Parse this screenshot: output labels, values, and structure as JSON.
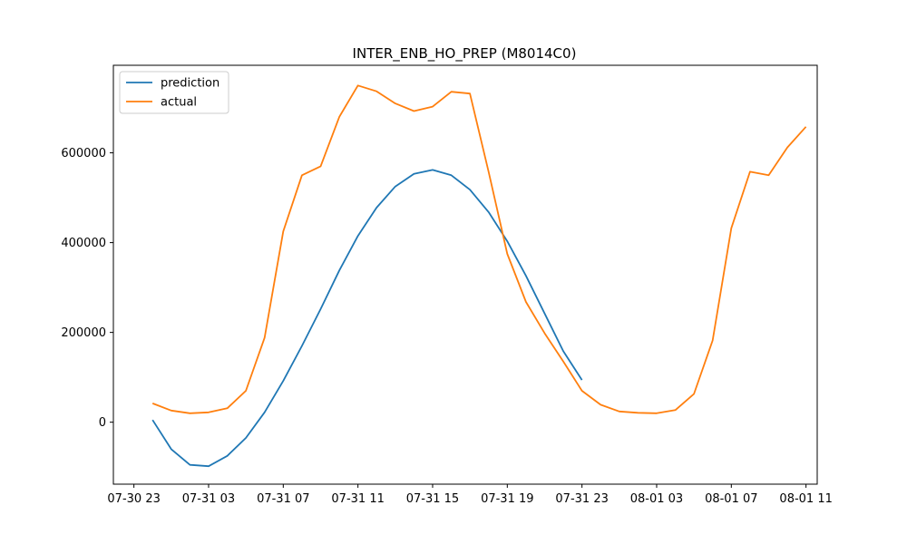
{
  "chart_data": {
    "type": "line",
    "title": "INTER_ENB_HO_PREP (M8014C0)",
    "xlabel": "",
    "ylabel": "",
    "x_ticks": [
      "07-30 23",
      "07-31 03",
      "07-31 07",
      "07-31 11",
      "07-31 15",
      "07-31 19",
      "07-31 23",
      "08-01 03",
      "08-01 07",
      "08-01 11"
    ],
    "y_ticks": [
      0,
      200000,
      400000,
      600000
    ],
    "y_tick_labels": [
      "0",
      "200000",
      "400000",
      "600000"
    ],
    "xlim": [
      -1.1,
      36.6
    ],
    "ylim": [
      -138000,
      795000
    ],
    "grid": false,
    "legend_position": "top-left",
    "series": [
      {
        "name": "prediction",
        "color": "#1f77b4",
        "x": [
          1,
          2,
          3,
          4,
          5,
          6,
          7,
          8,
          9,
          10,
          11,
          12,
          13,
          14,
          15,
          16,
          17,
          18,
          19,
          20,
          21,
          22,
          23,
          24
        ],
        "values": [
          5000,
          -60000,
          -95000,
          -98000,
          -75000,
          -35000,
          22000,
          92000,
          170000,
          252000,
          338000,
          415000,
          478000,
          525000,
          553000,
          562000,
          550000,
          518000,
          468000,
          403000,
          326000,
          242000,
          158000,
          94000
        ]
      },
      {
        "name": "actual",
        "color": "#ff7f0e",
        "x": [
          1,
          2,
          3,
          4,
          5,
          6,
          7,
          8,
          9,
          10,
          11,
          12,
          13,
          14,
          15,
          16,
          17,
          18,
          19,
          20,
          21,
          22,
          23,
          24,
          25,
          26,
          27,
          28,
          29,
          30,
          31,
          32,
          33,
          34,
          35,
          36
        ],
        "values": [
          42000,
          26000,
          20000,
          22000,
          31000,
          70000,
          188000,
          425000,
          550000,
          570000,
          680000,
          750000,
          737000,
          710000,
          693000,
          703000,
          736000,
          732000,
          558000,
          375000,
          268000,
          198000,
          135000,
          70000,
          39000,
          24000,
          21000,
          20000,
          27000,
          63000,
          182000,
          432000,
          558000,
          550000,
          612000,
          658000
        ]
      }
    ]
  }
}
